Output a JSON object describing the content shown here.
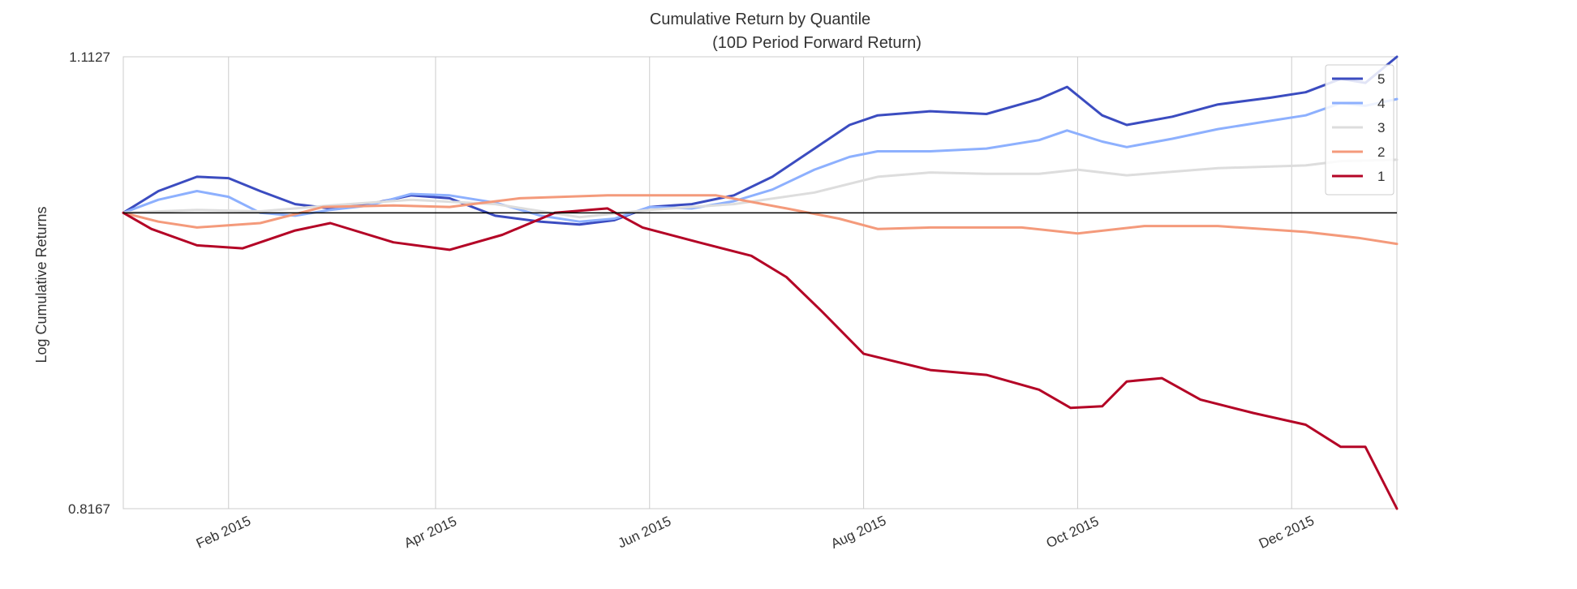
{
  "chart_data": {
    "type": "line",
    "title": "Cumulative Return by Quantile",
    "subtitle": "(10D Period Forward Return)",
    "xlabel": "",
    "ylabel": "Log Cumulative Returns",
    "y_scale": "log",
    "ylim": [
      0.8167,
      1.1127
    ],
    "y_ticks": [
      0.8167,
      1.1127
    ],
    "y_tick_labels": [
      "0.8167",
      "1.1127"
    ],
    "xlim": [
      "2015-01-02",
      "2015-12-31"
    ],
    "x_ticks": [
      "2015-02-01",
      "2015-04-01",
      "2015-06-01",
      "2015-08-01",
      "2015-10-01",
      "2015-12-01"
    ],
    "x_tick_labels": [
      "Feb 2015",
      "Apr 2015",
      "Jun 2015",
      "Aug 2015",
      "Oct 2015",
      "Dec 2015"
    ],
    "grid": "vertical",
    "baseline": 1.0,
    "legend_position": "top-right",
    "series": [
      {
        "name": "5",
        "color": "#3b4cc0",
        "points": [
          [
            "2015-01-02",
            1.0
          ],
          [
            "2015-01-12",
            1.015
          ],
          [
            "2015-01-23",
            1.025
          ],
          [
            "2015-02-01",
            1.024
          ],
          [
            "2015-02-10",
            1.015
          ],
          [
            "2015-02-20",
            1.006
          ],
          [
            "2015-03-02",
            1.003
          ],
          [
            "2015-03-13",
            1.006
          ],
          [
            "2015-03-25",
            1.012
          ],
          [
            "2015-04-05",
            1.01
          ],
          [
            "2015-04-18",
            0.998
          ],
          [
            "2015-05-01",
            0.994
          ],
          [
            "2015-05-12",
            0.992
          ],
          [
            "2015-05-22",
            0.995
          ],
          [
            "2015-06-01",
            1.004
          ],
          [
            "2015-06-13",
            1.006
          ],
          [
            "2015-06-25",
            1.012
          ],
          [
            "2015-07-06",
            1.025
          ],
          [
            "2015-07-18",
            1.045
          ],
          [
            "2015-07-28",
            1.062
          ],
          [
            "2015-08-05",
            1.069
          ],
          [
            "2015-08-20",
            1.072
          ],
          [
            "2015-09-05",
            1.07
          ],
          [
            "2015-09-20",
            1.081
          ],
          [
            "2015-09-28",
            1.09
          ],
          [
            "2015-10-08",
            1.069
          ],
          [
            "2015-10-15",
            1.062
          ],
          [
            "2015-10-28",
            1.068
          ],
          [
            "2015-11-10",
            1.077
          ],
          [
            "2015-11-25",
            1.082
          ],
          [
            "2015-12-05",
            1.086
          ],
          [
            "2015-12-15",
            1.096
          ],
          [
            "2015-12-22",
            1.093
          ],
          [
            "2015-12-31",
            1.1127
          ]
        ]
      },
      {
        "name": "4",
        "color": "#8db0fe",
        "points": [
          [
            "2015-01-02",
            1.0
          ],
          [
            "2015-01-12",
            1.009
          ],
          [
            "2015-01-23",
            1.015
          ],
          [
            "2015-02-01",
            1.011
          ],
          [
            "2015-02-10",
            1.0
          ],
          [
            "2015-02-20",
            0.998
          ],
          [
            "2015-03-02",
            1.002
          ],
          [
            "2015-03-13",
            1.005
          ],
          [
            "2015-03-25",
            1.013
          ],
          [
            "2015-04-05",
            1.012
          ],
          [
            "2015-04-18",
            1.007
          ],
          [
            "2015-05-01",
            0.998
          ],
          [
            "2015-05-12",
            0.994
          ],
          [
            "2015-05-22",
            0.996
          ],
          [
            "2015-06-01",
            1.004
          ],
          [
            "2015-06-13",
            1.003
          ],
          [
            "2015-06-25",
            1.008
          ],
          [
            "2015-07-06",
            1.016
          ],
          [
            "2015-07-18",
            1.03
          ],
          [
            "2015-07-28",
            1.039
          ],
          [
            "2015-08-05",
            1.043
          ],
          [
            "2015-08-20",
            1.043
          ],
          [
            "2015-09-05",
            1.045
          ],
          [
            "2015-09-20",
            1.051
          ],
          [
            "2015-09-28",
            1.058
          ],
          [
            "2015-10-08",
            1.05
          ],
          [
            "2015-10-15",
            1.046
          ],
          [
            "2015-10-28",
            1.052
          ],
          [
            "2015-11-10",
            1.059
          ],
          [
            "2015-11-25",
            1.065
          ],
          [
            "2015-12-05",
            1.069
          ],
          [
            "2015-12-15",
            1.078
          ],
          [
            "2015-12-22",
            1.076
          ],
          [
            "2015-12-31",
            1.081
          ]
        ]
      },
      {
        "name": "3",
        "color": "#dddddd",
        "points": [
          [
            "2015-01-02",
            1.0
          ],
          [
            "2015-01-23",
            1.002
          ],
          [
            "2015-02-10",
            1.001
          ],
          [
            "2015-03-02",
            1.005
          ],
          [
            "2015-03-25",
            1.009
          ],
          [
            "2015-04-18",
            1.006
          ],
          [
            "2015-05-12",
            0.997
          ],
          [
            "2015-06-01",
            1.002
          ],
          [
            "2015-06-25",
            1.006
          ],
          [
            "2015-07-18",
            1.014
          ],
          [
            "2015-08-05",
            1.025
          ],
          [
            "2015-08-20",
            1.028
          ],
          [
            "2015-09-05",
            1.027
          ],
          [
            "2015-09-20",
            1.027
          ],
          [
            "2015-10-01",
            1.03
          ],
          [
            "2015-10-15",
            1.026
          ],
          [
            "2015-11-10",
            1.031
          ],
          [
            "2015-12-05",
            1.033
          ],
          [
            "2015-12-15",
            1.036
          ],
          [
            "2015-12-31",
            1.037
          ]
        ]
      },
      {
        "name": "2",
        "color": "#f49a7b",
        "points": [
          [
            "2015-01-02",
            1.0
          ],
          [
            "2015-01-12",
            0.994
          ],
          [
            "2015-01-23",
            0.99
          ],
          [
            "2015-02-10",
            0.993
          ],
          [
            "2015-02-28",
            1.004
          ],
          [
            "2015-03-20",
            1.005
          ],
          [
            "2015-04-05",
            1.004
          ],
          [
            "2015-04-25",
            1.01
          ],
          [
            "2015-05-20",
            1.012
          ],
          [
            "2015-06-20",
            1.012
          ],
          [
            "2015-07-10",
            1.003
          ],
          [
            "2015-07-25",
            0.996
          ],
          [
            "2015-08-05",
            0.989
          ],
          [
            "2015-08-20",
            0.99
          ],
          [
            "2015-09-15",
            0.99
          ],
          [
            "2015-10-01",
            0.986
          ],
          [
            "2015-10-20",
            0.991
          ],
          [
            "2015-11-10",
            0.991
          ],
          [
            "2015-12-05",
            0.987
          ],
          [
            "2015-12-20",
            0.983
          ],
          [
            "2015-12-31",
            0.979
          ]
        ]
      },
      {
        "name": "1",
        "color": "#b40426",
        "points": [
          [
            "2015-01-02",
            1.0
          ],
          [
            "2015-01-10",
            0.989
          ],
          [
            "2015-01-23",
            0.978
          ],
          [
            "2015-02-05",
            0.976
          ],
          [
            "2015-02-20",
            0.988
          ],
          [
            "2015-03-02",
            0.993
          ],
          [
            "2015-03-20",
            0.98
          ],
          [
            "2015-04-05",
            0.975
          ],
          [
            "2015-04-20",
            0.985
          ],
          [
            "2015-05-05",
            1.0
          ],
          [
            "2015-05-20",
            1.003
          ],
          [
            "2015-05-30",
            0.99
          ],
          [
            "2015-06-15",
            0.98
          ],
          [
            "2015-06-30",
            0.971
          ],
          [
            "2015-07-10",
            0.957
          ],
          [
            "2015-07-20",
            0.935
          ],
          [
            "2015-08-01",
            0.908
          ],
          [
            "2015-08-20",
            0.898
          ],
          [
            "2015-09-05",
            0.895
          ],
          [
            "2015-09-20",
            0.886
          ],
          [
            "2015-09-29",
            0.875
          ],
          [
            "2015-10-08",
            0.876
          ],
          [
            "2015-10-15",
            0.891
          ],
          [
            "2015-10-25",
            0.893
          ],
          [
            "2015-11-05",
            0.88
          ],
          [
            "2015-11-20",
            0.872
          ],
          [
            "2015-12-05",
            0.865
          ],
          [
            "2015-12-15",
            0.852
          ],
          [
            "2015-12-22",
            0.852
          ],
          [
            "2015-12-31",
            0.8167
          ]
        ]
      }
    ]
  }
}
